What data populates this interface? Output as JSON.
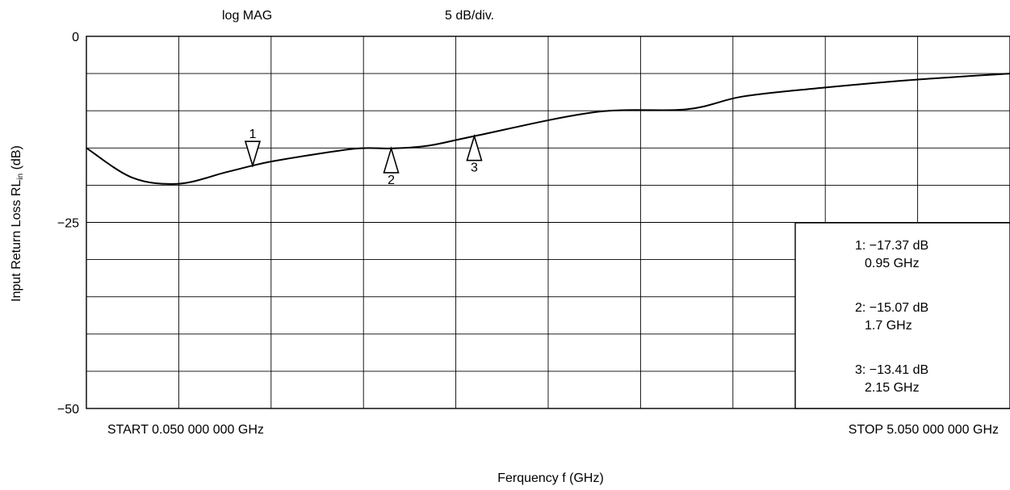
{
  "chart_data": {
    "type": "line",
    "header_left": "log MAG",
    "header_right": "5 dB/div.",
    "ylabel": "Input Return Loss  RL",
    "ylabel_sub": "in",
    "ylabel_unit": " (dB)",
    "xlabel": "Ferquency  f (GHz)",
    "start_label": "START  0.050  000  000  GHz",
    "stop_label": "STOP  5.050  000  000  GHz",
    "x_range_ghz": [
      0.05,
      5.05
    ],
    "ylim": [
      -50,
      0
    ],
    "y_ticks": [
      {
        "value": 0,
        "label": "0"
      },
      {
        "value": -25,
        "label": "−25"
      },
      {
        "value": -50,
        "label": "−50"
      }
    ],
    "grid": true,
    "grid_divisions": {
      "x": 10,
      "y": 10
    },
    "series": [
      {
        "x": [
          0.05,
          0.3,
          0.55,
          0.8,
          0.95,
          1.1,
          1.5,
          1.7,
          1.9,
          2.15,
          2.8,
          3.3,
          3.6,
          4.0,
          4.5,
          5.05
        ],
        "y": [
          -15.0,
          -19.0,
          -19.8,
          -18.3,
          -17.37,
          -16.6,
          -15.1,
          -15.07,
          -14.7,
          -13.41,
          -10.2,
          -9.8,
          -8.1,
          -7.0,
          -5.9,
          -5.0
        ]
      }
    ],
    "markers": [
      {
        "label": "1",
        "x": 0.95,
        "y": -17.37,
        "direction": "down"
      },
      {
        "label": "2",
        "x": 1.7,
        "y": -15.07,
        "direction": "up"
      },
      {
        "label": "3",
        "x": 2.15,
        "y": -13.41,
        "direction": "up"
      }
    ],
    "marker_readouts": [
      {
        "line1": "1:  −17.37 dB",
        "line2": "0.95 GHz"
      },
      {
        "line1": "2:  −15.07 dB",
        "line2": "1.7 GHz"
      },
      {
        "line1": "3:  −13.41 dB",
        "line2": "2.15 GHz"
      }
    ]
  }
}
